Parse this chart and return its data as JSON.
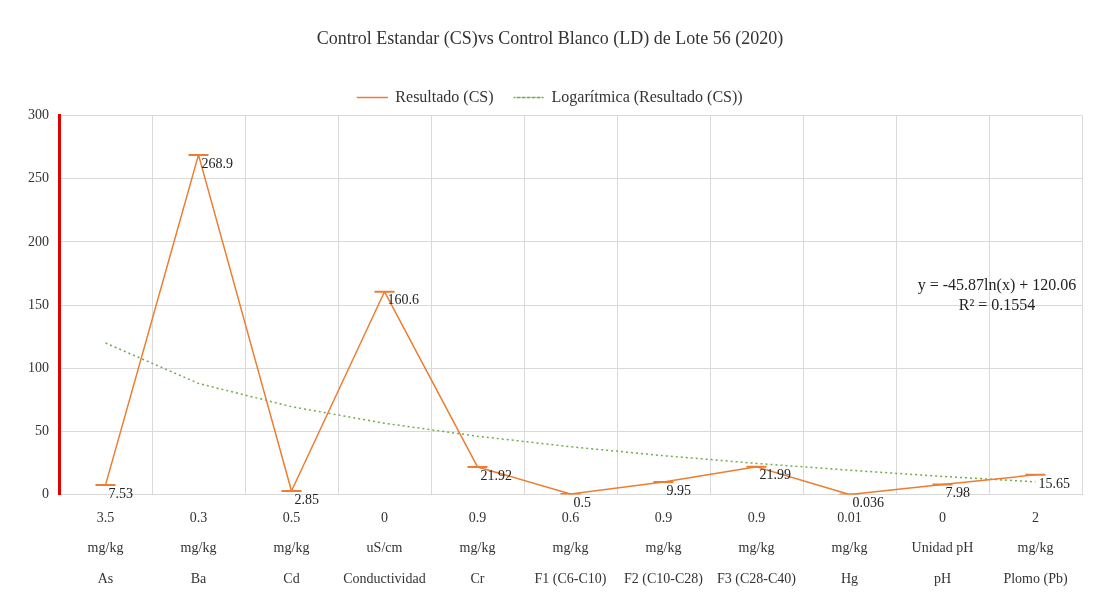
{
  "chart_data": {
    "type": "line",
    "title": "Control Estandar (CS)vs Control Blanco (LD) de Lote 56 (2020)",
    "categories": [
      "3.5\nmg/kg\nAs",
      "0.3\nmg/kg\nBa",
      "0.5\nmg/kg\nCd",
      "0\nuS/cm\nConductividad",
      "0.9\nmg/kg\nCr",
      "0.6\nmg/kg\nF1 (C6-C10)",
      "0.9\nmg/kg\nF2 (C10-C28)",
      "0.9\nmg/kg\nF3 (C28-C40)",
      "0.01\nmg/kg\nHg",
      "0\nUnidad pH\npH",
      "2\nmg/kg\nPlomo (Pb)"
    ],
    "series": [
      {
        "name": "Resultado (CS)",
        "color": "#ed7d31",
        "values": [
          7.53,
          268.9,
          2.85,
          160.6,
          21.92,
          0.5,
          9.95,
          21.99,
          0.036,
          7.98,
          15.65
        ],
        "value_labels": [
          "7.53",
          "268.9",
          "2.85",
          "160.6",
          "21.92",
          "0.5",
          "9.95",
          "21.99",
          "0.036",
          "7.98",
          "15.65"
        ],
        "line_style": "solid"
      },
      {
        "name": "Logarítmica (Resultado (CS))",
        "color": "#70ad47",
        "type": "line",
        "values": [
          120,
          88,
          69.6,
          56.5,
          46.2,
          37.9,
          30.8,
          24.7,
          19.3,
          14.4,
          10.1
        ],
        "marker": "none",
        "line_style": "dotted"
      }
    ],
    "ylim": [
      0,
      300
    ],
    "yticks": [
      0,
      50,
      100,
      150,
      200,
      250,
      300
    ],
    "grid": true,
    "legend": "top",
    "annotations": [
      "y = -45.87ln(x) + 120.06\nR² = 0.1554"
    ]
  }
}
